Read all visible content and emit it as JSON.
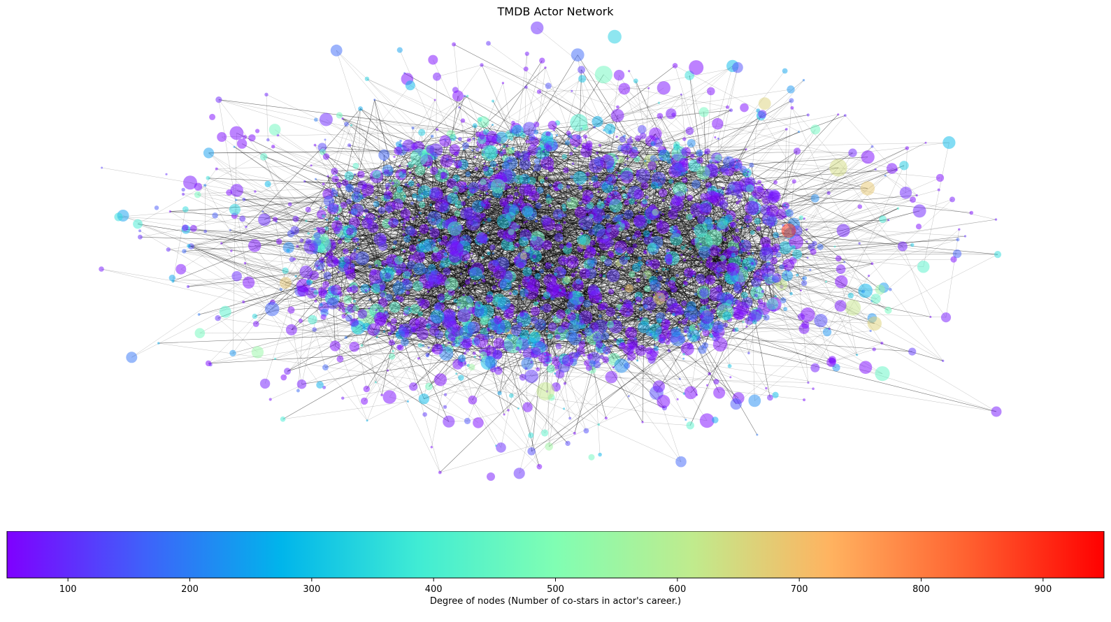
{
  "chart_data": {
    "type": "network",
    "title": "TMDB Actor Network",
    "node_color_metric": "degree",
    "colormap": "rainbow",
    "colorbar": {
      "label": "Degree of nodes (Number of co-stars in actor's career.)",
      "range": [
        50,
        950
      ],
      "ticks": [
        100,
        200,
        300,
        400,
        500,
        600,
        700,
        800,
        900
      ],
      "tick_labels": [
        "100",
        "200",
        "300",
        "400",
        "500",
        "600",
        "700",
        "800",
        "900"
      ],
      "stops": [
        "#7f00ff",
        "#3f61fa",
        "#00b5eb",
        "#40ecd4",
        "#80feb3",
        "#c0eb8d",
        "#ffb360",
        "#ff6130",
        "#ff0000"
      ]
    },
    "edge_color": "#000000",
    "node_alpha": 0.5
  }
}
